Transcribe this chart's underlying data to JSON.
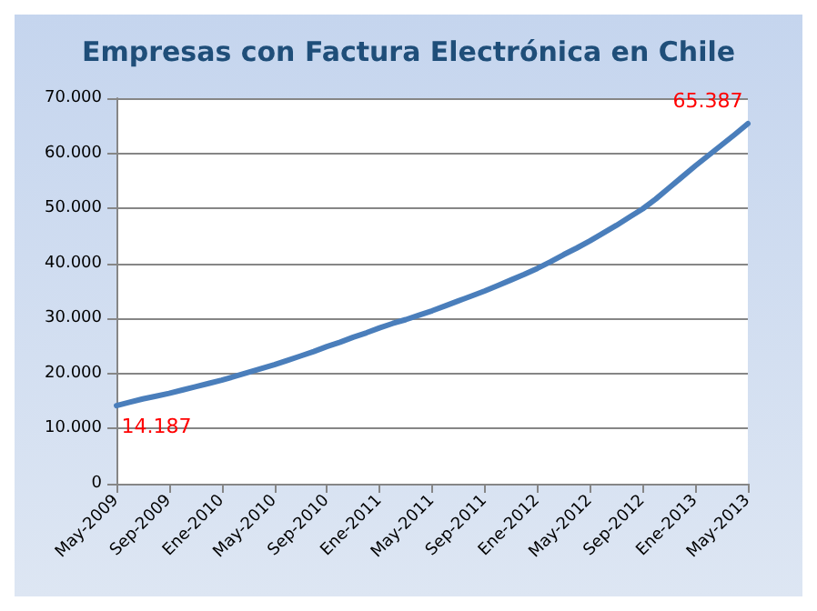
{
  "chart_data": {
    "type": "line",
    "title": "Empresas con Factura Electrónica en Chile",
    "categories": [
      "May-2009",
      null,
      null,
      null,
      "Sep-2009",
      null,
      null,
      null,
      "Ene-2010",
      null,
      null,
      null,
      "May-2010",
      null,
      null,
      null,
      "Sep-2010",
      null,
      null,
      null,
      "Ene-2011",
      null,
      null,
      null,
      "May-2011",
      null,
      null,
      null,
      "Sep-2011",
      null,
      null,
      null,
      "Ene-2012",
      null,
      null,
      null,
      "May-2012",
      null,
      null,
      null,
      "Sep-2012",
      null,
      null,
      null,
      "Ene-2013",
      null,
      null,
      null,
      "May-2013"
    ],
    "series": [
      {
        "color": "#4a7ebb",
        "values": [
          14187,
          14800,
          15400,
          15900,
          16400,
          17000,
          17600,
          18200,
          18800,
          19500,
          20200,
          20900,
          21600,
          22400,
          23200,
          24000,
          24900,
          25700,
          26600,
          27400,
          28300,
          29100,
          29800,
          30600,
          31400,
          32300,
          33200,
          34100,
          35000,
          36000,
          37000,
          38000,
          39100,
          40300,
          41600,
          42800,
          44100,
          45500,
          46900,
          48400,
          49900,
          51700,
          53700,
          55700,
          57700,
          59600,
          61500,
          63400,
          65387
        ],
        "value_labels": [
          "14.187",
          null,
          null,
          null,
          null,
          null,
          null,
          null,
          null,
          null,
          null,
          null,
          null,
          null,
          null,
          null,
          null,
          null,
          null,
          null,
          null,
          null,
          null,
          null,
          null,
          null,
          null,
          null,
          null,
          null,
          null,
          null,
          null,
          null,
          null,
          null,
          null,
          null,
          null,
          null,
          null,
          null,
          null,
          null,
          null,
          null,
          null,
          null,
          "65.387"
        ]
      }
    ],
    "ylim": [
      0,
      70000
    ],
    "yticks": [
      {
        "value": 0,
        "label": "0"
      },
      {
        "value": 10000,
        "label": "10.000"
      },
      {
        "value": 20000,
        "label": "20.000"
      },
      {
        "value": 30000,
        "label": "30.000"
      },
      {
        "value": 40000,
        "label": "40.000"
      },
      {
        "value": 50000,
        "label": "50.000"
      },
      {
        "value": 60000,
        "label": "60.000"
      },
      {
        "value": 70000,
        "label": "70.000"
      }
    ],
    "grid": "y",
    "marker": "none",
    "line_style": "solid"
  }
}
